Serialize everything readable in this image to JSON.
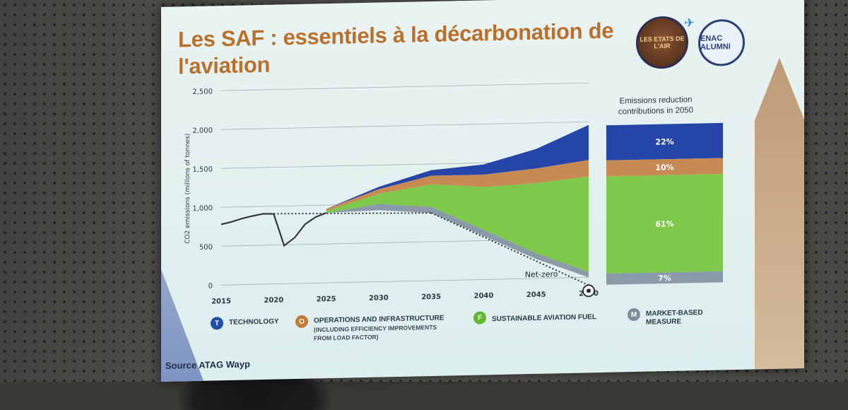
{
  "slide": {
    "title": "Les SAF : essentiels à la décarbonation de l'aviation",
    "source": "Source ATAG Wayp",
    "logo_left_text": "LES ETATS DE L'AIR",
    "logo_right_text": "ENAC ALUMNI",
    "net_zero_label": "Net-zero",
    "breakdown_heading_line1": "Emissions reduction",
    "breakdown_heading_line2": "contributions in 2050"
  },
  "legend": [
    {
      "letter": "T",
      "label": "TECHNOLOGY",
      "sub1": "",
      "sub2": "",
      "color": "#1f4fa8"
    },
    {
      "letter": "O",
      "label": "OPERATIONS AND INFRASTRUCTURE",
      "sub1": "(INCLUDING EFFICIENCY IMPROVEMENTS",
      "sub2": "FROM LOAD FACTOR)",
      "color": "#c07a3a"
    },
    {
      "letter": "F",
      "label": "SUSTAINABLE AVIATION FUEL",
      "sub1": "",
      "sub2": "",
      "color": "#63b832"
    },
    {
      "letter": "M",
      "label": "MARKET-BASED",
      "sub1": "MEASURE",
      "sub2": "",
      "color": "#7c8c9c"
    }
  ],
  "chart_data": [
    {
      "type": "area",
      "title": "",
      "xlabel": "",
      "ylabel": "CO2 emissions (millions of tonnes)",
      "xlim": [
        2015,
        2050
      ],
      "ylim": [
        0,
        2500
      ],
      "xticks": [
        2015,
        2020,
        2025,
        2030,
        2035,
        2040,
        2045,
        2050
      ],
      "yticks": [
        0,
        500,
        1000,
        1500,
        2000,
        2500
      ],
      "ytick_labels": [
        "0",
        "500",
        "1,000",
        "1,500",
        "2,000",
        "2,500"
      ],
      "grid": "horizontal",
      "x": [
        2025,
        2030,
        2035,
        2040,
        2045,
        2050
      ],
      "series": [
        {
          "name": "MARKET-BASED MEASURE",
          "color": "#8a9aa8",
          "values": [
            0,
            80,
            80,
            80,
            75,
            70
          ]
        },
        {
          "name": "SUSTAINABLE AVIATION FUEL",
          "color": "#7fc94a",
          "values": [
            25,
            130,
            290,
            550,
            900,
            1230
          ]
        },
        {
          "name": "OPERATIONS AND INFRASTRUCTURE",
          "color": "#c88a55",
          "values": [
            25,
            60,
            110,
            160,
            190,
            210
          ]
        },
        {
          "name": "TECHNOLOGY",
          "color": "#2546a8",
          "values": [
            0,
            30,
            70,
            130,
            250,
            450
          ]
        }
      ],
      "residual": {
        "x": [
          2025,
          2030,
          2035,
          2040,
          2045,
          2050
        ],
        "values": [
          900,
          920,
          870,
          560,
          250,
          0
        ]
      },
      "historic": {
        "x": [
          2015,
          2016,
          2017,
          2018,
          2019,
          2020,
          2021,
          2022,
          2023,
          2024,
          2025
        ],
        "values": [
          780,
          810,
          850,
          880,
          905,
          900,
          490,
          590,
          760,
          850,
          900
        ]
      },
      "plateau_dotted": {
        "x": [
          2019,
          2035
        ],
        "values": [
          905,
          870
        ]
      },
      "net_zero_line": {
        "x": [
          2035,
          2050
        ],
        "values": [
          870,
          -100
        ]
      }
    },
    {
      "type": "bar",
      "title": "Emissions reduction contributions in 2050",
      "categories": [
        "TECHNOLOGY",
        "OPERATIONS AND INFRASTRUCTURE",
        "SUSTAINABLE AVIATION FUEL",
        "MARKET-BASED MEASURE"
      ],
      "values": [
        22,
        10,
        61,
        7
      ],
      "labels": [
        "22%",
        "10%",
        "61%",
        "7%"
      ],
      "colors": [
        "#2546a8",
        "#c88a55",
        "#7fc94a",
        "#8a9aa8"
      ]
    }
  ]
}
